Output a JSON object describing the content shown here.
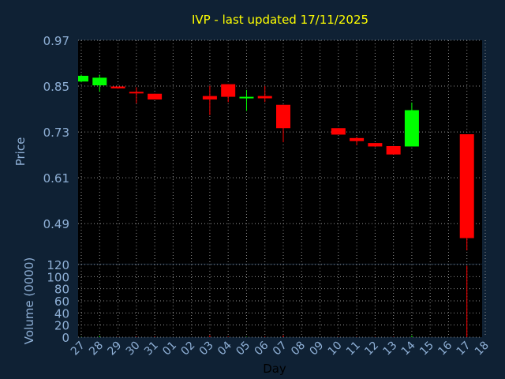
{
  "colors": {
    "background": "#0f2134",
    "plot": "#000000",
    "axis_text": "#8fb0d6",
    "title": "#ffff00",
    "grid": "#8f8f8f",
    "up": "#00ff00",
    "down": "#ff0000"
  },
  "chart_data": {
    "type": "candlestick",
    "title": "IVP - last updated 17/11/2025",
    "xlabel": "Day",
    "price_ylabel": "Price",
    "volume_ylabel": "Volume (0000)",
    "x_ticks": [
      "27",
      "28",
      "29",
      "30",
      "31",
      "01",
      "02",
      "03",
      "04",
      "05",
      "06",
      "07",
      "08",
      "09",
      "10",
      "11",
      "12",
      "13",
      "14",
      "15",
      "16",
      "17",
      "18"
    ],
    "price_ticks": [
      "0.97",
      "0.85",
      "0.73",
      "0.61",
      "0.49"
    ],
    "price_ylim": [
      0.385,
      0.97
    ],
    "volume_ticks": [
      "120",
      "100",
      "80",
      "60",
      "40",
      "20",
      "0"
    ],
    "volume_ylim": [
      0,
      120
    ],
    "grid": true,
    "candles": [
      {
        "day": "27",
        "open": 0.862,
        "high": 0.88,
        "low": 0.86,
        "close": 0.877,
        "volume": 0.5
      },
      {
        "day": "28",
        "open": 0.852,
        "high": 0.88,
        "low": 0.835,
        "close": 0.872,
        "volume": 2.0
      },
      {
        "day": "29",
        "open": 0.849,
        "high": 0.849,
        "low": 0.843,
        "close": 0.844,
        "volume": 0.5
      },
      {
        "day": "30",
        "open": 0.835,
        "high": 0.847,
        "low": 0.805,
        "close": 0.833,
        "volume": 1.0
      },
      {
        "day": "31",
        "open": 0.83,
        "high": 0.83,
        "low": 0.815,
        "close": 0.815,
        "volume": 1.0
      },
      {
        "day": "03",
        "open": 0.824,
        "high": 0.851,
        "low": 0.774,
        "close": 0.815,
        "volume": 3.0
      },
      {
        "day": "04",
        "open": 0.855,
        "high": 0.855,
        "low": 0.808,
        "close": 0.822,
        "volume": 1.0
      },
      {
        "day": "05",
        "open": 0.82,
        "high": 0.84,
        "low": 0.785,
        "close": 0.822,
        "volume": 0.5
      },
      {
        "day": "06",
        "open": 0.824,
        "high": 0.85,
        "low": 0.808,
        "close": 0.818,
        "volume": 1.0
      },
      {
        "day": "07",
        "open": 0.801,
        "high": 0.801,
        "low": 0.703,
        "close": 0.74,
        "volume": 3.0
      },
      {
        "day": "10",
        "open": 0.74,
        "high": 0.74,
        "low": 0.723,
        "close": 0.723,
        "volume": 0.5
      },
      {
        "day": "11",
        "open": 0.714,
        "high": 0.717,
        "low": 0.695,
        "close": 0.706,
        "volume": 0.5
      },
      {
        "day": "12",
        "open": 0.701,
        "high": 0.701,
        "low": 0.691,
        "close": 0.692,
        "volume": 0.5
      },
      {
        "day": "13",
        "open": 0.693,
        "high": 0.693,
        "low": 0.671,
        "close": 0.671,
        "volume": 0.5
      },
      {
        "day": "14",
        "open": 0.692,
        "high": 0.807,
        "low": 0.692,
        "close": 0.787,
        "volume": 2.5
      },
      {
        "day": "17",
        "open": 0.724,
        "high": 0.724,
        "low": 0.42,
        "close": 0.452,
        "volume": 118
      }
    ]
  }
}
